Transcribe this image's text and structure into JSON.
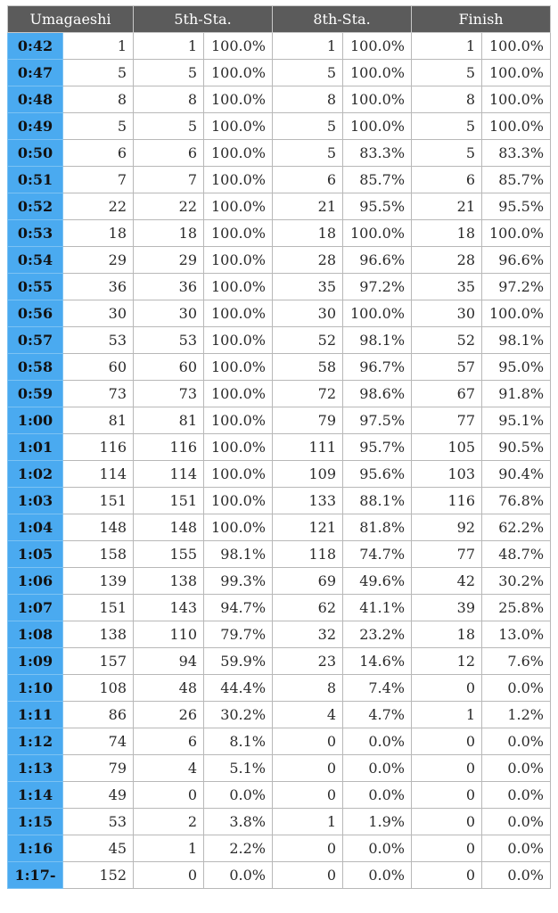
{
  "headers": {
    "umagaeshi": "Umagaeshi",
    "sta5": "5th-Sta.",
    "sta8": "8th-Sta.",
    "finish": "Finish"
  },
  "rows": [
    {
      "time": "0:42",
      "count": "1",
      "s5": "1",
      "s5p": "100.0%",
      "s8": "1",
      "s8p": "100.0%",
      "fin": "1",
      "finp": "100.0%"
    },
    {
      "time": "0:47",
      "count": "5",
      "s5": "5",
      "s5p": "100.0%",
      "s8": "5",
      "s8p": "100.0%",
      "fin": "5",
      "finp": "100.0%"
    },
    {
      "time": "0:48",
      "count": "8",
      "s5": "8",
      "s5p": "100.0%",
      "s8": "8",
      "s8p": "100.0%",
      "fin": "8",
      "finp": "100.0%"
    },
    {
      "time": "0:49",
      "count": "5",
      "s5": "5",
      "s5p": "100.0%",
      "s8": "5",
      "s8p": "100.0%",
      "fin": "5",
      "finp": "100.0%"
    },
    {
      "time": "0:50",
      "count": "6",
      "s5": "6",
      "s5p": "100.0%",
      "s8": "5",
      "s8p": "83.3%",
      "fin": "5",
      "finp": "83.3%"
    },
    {
      "time": "0:51",
      "count": "7",
      "s5": "7",
      "s5p": "100.0%",
      "s8": "6",
      "s8p": "85.7%",
      "fin": "6",
      "finp": "85.7%"
    },
    {
      "time": "0:52",
      "count": "22",
      "s5": "22",
      "s5p": "100.0%",
      "s8": "21",
      "s8p": "95.5%",
      "fin": "21",
      "finp": "95.5%"
    },
    {
      "time": "0:53",
      "count": "18",
      "s5": "18",
      "s5p": "100.0%",
      "s8": "18",
      "s8p": "100.0%",
      "fin": "18",
      "finp": "100.0%"
    },
    {
      "time": "0:54",
      "count": "29",
      "s5": "29",
      "s5p": "100.0%",
      "s8": "28",
      "s8p": "96.6%",
      "fin": "28",
      "finp": "96.6%"
    },
    {
      "time": "0:55",
      "count": "36",
      "s5": "36",
      "s5p": "100.0%",
      "s8": "35",
      "s8p": "97.2%",
      "fin": "35",
      "finp": "97.2%"
    },
    {
      "time": "0:56",
      "count": "30",
      "s5": "30",
      "s5p": "100.0%",
      "s8": "30",
      "s8p": "100.0%",
      "fin": "30",
      "finp": "100.0%"
    },
    {
      "time": "0:57",
      "count": "53",
      "s5": "53",
      "s5p": "100.0%",
      "s8": "52",
      "s8p": "98.1%",
      "fin": "52",
      "finp": "98.1%"
    },
    {
      "time": "0:58",
      "count": "60",
      "s5": "60",
      "s5p": "100.0%",
      "s8": "58",
      "s8p": "96.7%",
      "fin": "57",
      "finp": "95.0%"
    },
    {
      "time": "0:59",
      "count": "73",
      "s5": "73",
      "s5p": "100.0%",
      "s8": "72",
      "s8p": "98.6%",
      "fin": "67",
      "finp": "91.8%"
    },
    {
      "time": "1:00",
      "count": "81",
      "s5": "81",
      "s5p": "100.0%",
      "s8": "79",
      "s8p": "97.5%",
      "fin": "77",
      "finp": "95.1%"
    },
    {
      "time": "1:01",
      "count": "116",
      "s5": "116",
      "s5p": "100.0%",
      "s8": "111",
      "s8p": "95.7%",
      "fin": "105",
      "finp": "90.5%"
    },
    {
      "time": "1:02",
      "count": "114",
      "s5": "114",
      "s5p": "100.0%",
      "s8": "109",
      "s8p": "95.6%",
      "fin": "103",
      "finp": "90.4%"
    },
    {
      "time": "1:03",
      "count": "151",
      "s5": "151",
      "s5p": "100.0%",
      "s8": "133",
      "s8p": "88.1%",
      "fin": "116",
      "finp": "76.8%"
    },
    {
      "time": "1:04",
      "count": "148",
      "s5": "148",
      "s5p": "100.0%",
      "s8": "121",
      "s8p": "81.8%",
      "fin": "92",
      "finp": "62.2%"
    },
    {
      "time": "1:05",
      "count": "158",
      "s5": "155",
      "s5p": "98.1%",
      "s8": "118",
      "s8p": "74.7%",
      "fin": "77",
      "finp": "48.7%"
    },
    {
      "time": "1:06",
      "count": "139",
      "s5": "138",
      "s5p": "99.3%",
      "s8": "69",
      "s8p": "49.6%",
      "fin": "42",
      "finp": "30.2%"
    },
    {
      "time": "1:07",
      "count": "151",
      "s5": "143",
      "s5p": "94.7%",
      "s8": "62",
      "s8p": "41.1%",
      "fin": "39",
      "finp": "25.8%"
    },
    {
      "time": "1:08",
      "count": "138",
      "s5": "110",
      "s5p": "79.7%",
      "s8": "32",
      "s8p": "23.2%",
      "fin": "18",
      "finp": "13.0%"
    },
    {
      "time": "1:09",
      "count": "157",
      "s5": "94",
      "s5p": "59.9%",
      "s8": "23",
      "s8p": "14.6%",
      "fin": "12",
      "finp": "7.6%"
    },
    {
      "time": "1:10",
      "count": "108",
      "s5": "48",
      "s5p": "44.4%",
      "s8": "8",
      "s8p": "7.4%",
      "fin": "0",
      "finp": "0.0%"
    },
    {
      "time": "1:11",
      "count": "86",
      "s5": "26",
      "s5p": "30.2%",
      "s8": "4",
      "s8p": "4.7%",
      "fin": "1",
      "finp": "1.2%"
    },
    {
      "time": "1:12",
      "count": "74",
      "s5": "6",
      "s5p": "8.1%",
      "s8": "0",
      "s8p": "0.0%",
      "fin": "0",
      "finp": "0.0%"
    },
    {
      "time": "1:13",
      "count": "79",
      "s5": "4",
      "s5p": "5.1%",
      "s8": "0",
      "s8p": "0.0%",
      "fin": "0",
      "finp": "0.0%"
    },
    {
      "time": "1:14",
      "count": "49",
      "s5": "0",
      "s5p": "0.0%",
      "s8": "0",
      "s8p": "0.0%",
      "fin": "0",
      "finp": "0.0%"
    },
    {
      "time": "1:15",
      "count": "53",
      "s5": "2",
      "s5p": "3.8%",
      "s8": "1",
      "s8p": "1.9%",
      "fin": "0",
      "finp": "0.0%"
    },
    {
      "time": "1:16",
      "count": "45",
      "s5": "1",
      "s5p": "2.2%",
      "s8": "0",
      "s8p": "0.0%",
      "fin": "0",
      "finp": "0.0%"
    },
    {
      "time": "1:17-",
      "count": "152",
      "s5": "0",
      "s5p": "0.0%",
      "s8": "0",
      "s8p": "0.0%",
      "fin": "0",
      "finp": "0.0%"
    }
  ],
  "colors": {
    "header_bg": "#5b5b5b",
    "header_text": "#ffffff",
    "time_bg": "#4aaaf0",
    "cell_border": "#b8b8b8"
  }
}
